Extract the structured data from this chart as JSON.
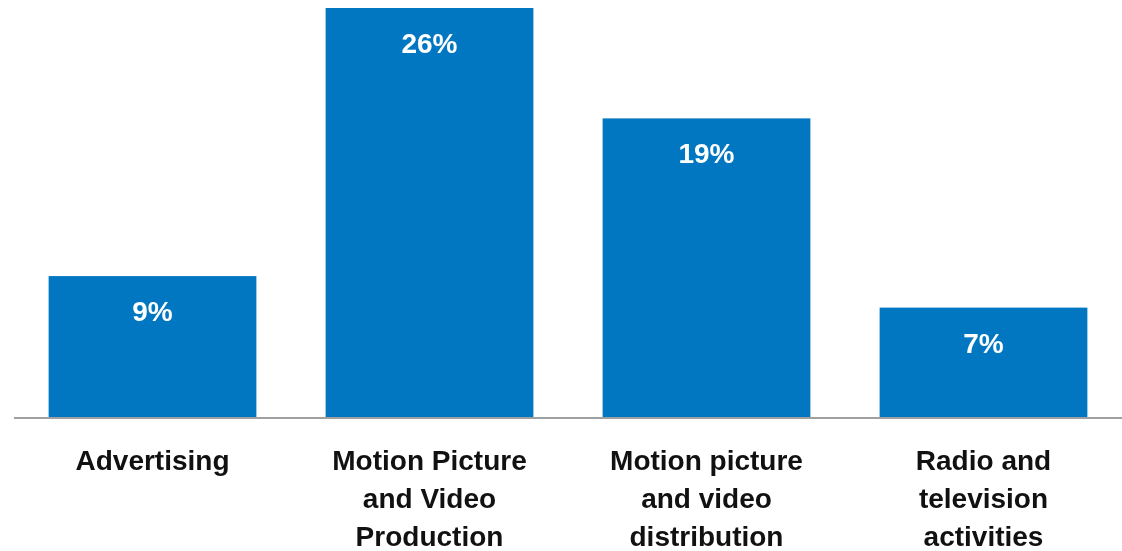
{
  "chart_data": {
    "type": "bar",
    "categories": [
      "Advertising",
      "Motion Picture and Video Production",
      "Motion picture and video distribution",
      "Radio and television activities"
    ],
    "values": [
      9,
      26,
      19,
      7
    ],
    "color": "#0077c0",
    "value_labels": [
      "9%",
      "26%",
      "19%",
      "7%"
    ]
  }
}
